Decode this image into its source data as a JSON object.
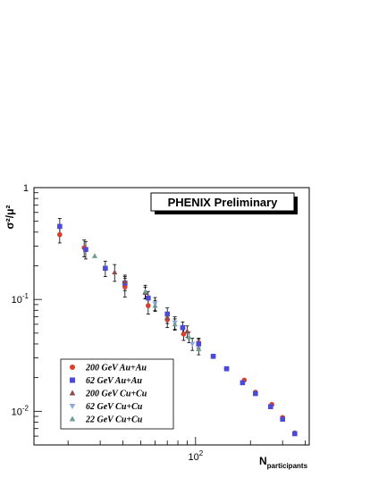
{
  "chart_data": {
    "type": "scatter",
    "title": "",
    "banner": "PHENIX Preliminary",
    "ylabel": "σ²/μ²",
    "xlabel": {
      "main": "N",
      "subscript": "participants"
    },
    "xscale": "log",
    "yscale": "log",
    "xlim": [
      13,
      420
    ],
    "ylim": [
      0.005,
      1
    ],
    "x_tick_labels": [
      {
        "value": 100,
        "base": "10",
        "exp": "2"
      }
    ],
    "y_tick_labels": [
      {
        "value": 1,
        "base": "1",
        "exp": ""
      },
      {
        "value": 0.1,
        "base": "10",
        "exp": "-1"
      },
      {
        "value": 0.01,
        "base": "10",
        "exp": "-2"
      }
    ],
    "legend_position": "bottom-left",
    "series": [
      {
        "name": "200 GeV Au+Au",
        "marker": "circle",
        "color": "#d8402c",
        "points": [
          {
            "x": 18,
            "y": 0.38,
            "err": 0.06
          },
          {
            "x": 24.5,
            "y": 0.29,
            "err": 0.05
          },
          {
            "x": 41,
            "y": 0.13,
            "err": 0.025
          },
          {
            "x": 55,
            "y": 0.088,
            "err": 0.014
          },
          {
            "x": 70,
            "y": 0.066,
            "err": 0.01
          },
          {
            "x": 86,
            "y": 0.049,
            "err": 0.006
          },
          {
            "x": 104,
            "y": 0.041,
            "err": 0.004
          },
          {
            "x": 125,
            "y": 0.031,
            "err": 0
          },
          {
            "x": 148,
            "y": 0.024,
            "err": 0
          },
          {
            "x": 185,
            "y": 0.019,
            "err": 0
          },
          {
            "x": 213,
            "y": 0.0148,
            "err": 0
          },
          {
            "x": 262,
            "y": 0.0115,
            "err": 0
          },
          {
            "x": 300,
            "y": 0.0088,
            "err": 0
          },
          {
            "x": 350,
            "y": 0.0064,
            "err": 0
          }
        ]
      },
      {
        "name": "62 GeV Au+Au",
        "marker": "square",
        "color": "#4b4bd8",
        "points": [
          {
            "x": 18,
            "y": 0.45,
            "err": 0.08
          },
          {
            "x": 25,
            "y": 0.28,
            "err": 0.05
          },
          {
            "x": 32,
            "y": 0.19,
            "err": 0.03
          },
          {
            "x": 41,
            "y": 0.14,
            "err": 0.02
          },
          {
            "x": 55,
            "y": 0.103,
            "err": 0.015
          },
          {
            "x": 70,
            "y": 0.074,
            "err": 0.01
          },
          {
            "x": 85,
            "y": 0.056,
            "err": 0.007
          },
          {
            "x": 104,
            "y": 0.04,
            "err": 0.004
          },
          {
            "x": 125,
            "y": 0.031,
            "err": 0
          },
          {
            "x": 148,
            "y": 0.024,
            "err": 0
          },
          {
            "x": 181,
            "y": 0.018,
            "err": 0
          },
          {
            "x": 213,
            "y": 0.0144,
            "err": 0
          },
          {
            "x": 258,
            "y": 0.011,
            "err": 0
          },
          {
            "x": 300,
            "y": 0.0085,
            "err": 0
          },
          {
            "x": 350,
            "y": 0.0063,
            "err": 0
          }
        ]
      },
      {
        "name": "200 GeV Cu+Cu",
        "marker": "triangle-up",
        "color": "#8a4a4e",
        "points": [
          {
            "x": 36,
            "y": 0.175,
            "err": 0.03
          },
          {
            "x": 41,
            "y": 0.145,
            "err": 0.02
          },
          {
            "x": 53,
            "y": 0.115,
            "err": 0.014
          },
          {
            "x": 70,
            "y": 0.069,
            "err": 0.008
          },
          {
            "x": 90,
            "y": 0.052,
            "err": 0.006
          }
        ]
      },
      {
        "name": "62 GeV Cu+Cu",
        "marker": "triangle-down",
        "color": "#8aa8e0",
        "points": [
          {
            "x": 60,
            "y": 0.092,
            "err": 0.012
          },
          {
            "x": 77,
            "y": 0.062,
            "err": 0.008
          },
          {
            "x": 96,
            "y": 0.04,
            "err": 0.005
          }
        ]
      },
      {
        "name": "22 GeV Cu+Cu",
        "marker": "triangle-up",
        "color": "#6f9e94",
        "points": [
          {
            "x": 28,
            "y": 0.245,
            "err": 0
          },
          {
            "x": 53,
            "y": 0.118,
            "err": 0.016
          },
          {
            "x": 60,
            "y": 0.088,
            "err": 0.01
          },
          {
            "x": 77,
            "y": 0.06,
            "err": 0.007
          },
          {
            "x": 92,
            "y": 0.046,
            "err": 0.005
          },
          {
            "x": 104,
            "y": 0.036,
            "err": 0.004
          }
        ]
      }
    ]
  }
}
